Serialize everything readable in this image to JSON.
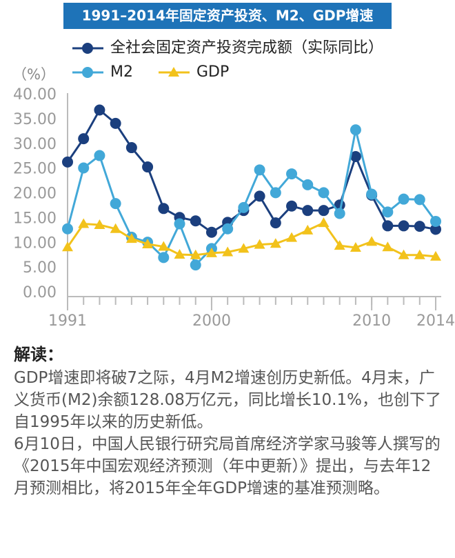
{
  "chart_data": {
    "type": "line",
    "title": "1991–2014年固定资产投资、M2、GDP增速",
    "y_label": "（%）",
    "x": [
      1991,
      1992,
      1993,
      1994,
      1995,
      1996,
      1997,
      1998,
      1999,
      2000,
      2001,
      2002,
      2003,
      2004,
      2005,
      2006,
      2007,
      2008,
      2009,
      2010,
      2011,
      2012,
      2013,
      2014
    ],
    "xlim": [
      1991,
      2014
    ],
    "xticks": [
      1991,
      2000,
      2010,
      2014
    ],
    "ylim": [
      0,
      40
    ],
    "yticks": [
      {
        "value": 0,
        "label": "0.00"
      },
      {
        "value": 5,
        "label": "5.00"
      },
      {
        "value": 10,
        "label": "10.00"
      },
      {
        "value": 15,
        "label": "15.00"
      },
      {
        "value": 20,
        "label": "20.00"
      },
      {
        "value": 25,
        "label": "25.00"
      },
      {
        "value": 30,
        "label": "30.00"
      },
      {
        "value": 35,
        "label": "35.00"
      },
      {
        "value": 40,
        "label": "40.00"
      }
    ],
    "grid": false,
    "series": [
      {
        "name": "全社会固定资产投资完成额（实际同比）",
        "color": "#1b3f7e",
        "marker": "circle",
        "values": [
          26.5,
          31.2,
          37.0,
          34.3,
          29.4,
          25.5,
          17.1,
          15.3,
          14.6,
          12.3,
          14.3,
          16.7,
          19.6,
          14.2,
          17.6,
          16.7,
          16.7,
          17.8,
          27.6,
          19.8,
          13.6,
          13.6,
          13.5,
          12.9
        ]
      },
      {
        "name": "M2",
        "color": "#42a8d8",
        "marker": "circle",
        "values": [
          13.0,
          25.3,
          27.8,
          18.1,
          11.3,
          10.3,
          7.2,
          14.0,
          5.7,
          9.0,
          13.0,
          17.3,
          24.9,
          20.3,
          24.1,
          21.9,
          20.3,
          16.1,
          33.0,
          20.0,
          16.4,
          19.0,
          18.9,
          14.5
        ]
      },
      {
        "name": "GDP",
        "color": "#f2c21b",
        "marker": "triangle",
        "values": [
          9.3,
          14.0,
          13.8,
          13.0,
          11.0,
          9.9,
          9.4,
          7.8,
          7.7,
          8.1,
          8.3,
          9.0,
          9.8,
          10.0,
          11.2,
          12.7,
          14.2,
          9.6,
          9.2,
          10.4,
          9.3,
          7.7,
          7.7,
          7.4
        ]
      }
    ]
  },
  "interpretation": {
    "heading": "解读：",
    "paragraphs": [
      "GDP增速即将破7之际，4月M2增速创历史新低。4月末，广义货币(M2)余额128.08万亿元，同比增长10.1%，也创下了自1995年以来的历史新低。",
      "6月10日，中国人民银行研究局首席经济学家马骏等人撰写的《2015年中国宏观经济预测（年中更新）》提出，与去年12月预测相比，将2015年全年GDP增速的基准预测略。"
    ]
  }
}
